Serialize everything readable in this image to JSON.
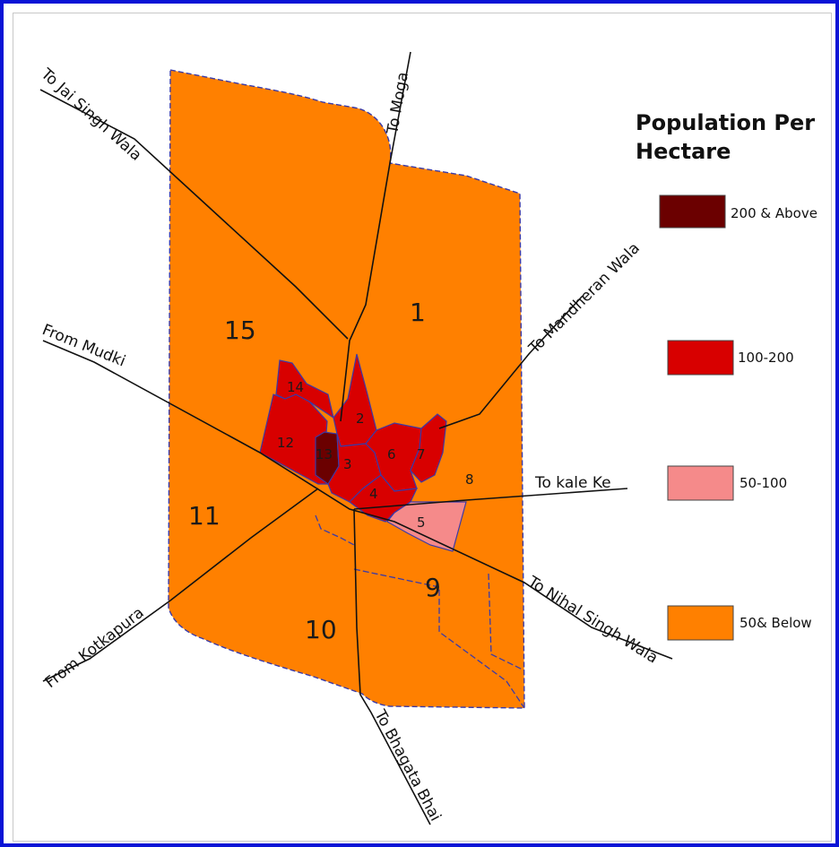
{
  "legend": {
    "title_line1": "Population Per",
    "title_line2": "Hectare",
    "classes": [
      {
        "label": "200 & Above",
        "color": "#6b0000"
      },
      {
        "label": "100-200",
        "color": "#d80000"
      },
      {
        "label": "50-100",
        "color": "#f58a8a"
      },
      {
        "label": "50& Below",
        "color": "#ff8000"
      }
    ]
  },
  "colors": {
    "frame": "#0a14d6",
    "boundary": "#3a3aa8",
    "road": "#111111"
  },
  "wards": [
    {
      "id": "1",
      "label": "1"
    },
    {
      "id": "2",
      "label": "2"
    },
    {
      "id": "3",
      "label": "3"
    },
    {
      "id": "4",
      "label": "4"
    },
    {
      "id": "5",
      "label": "5"
    },
    {
      "id": "6",
      "label": "6"
    },
    {
      "id": "7",
      "label": "7"
    },
    {
      "id": "8",
      "label": "8"
    },
    {
      "id": "9",
      "label": "9"
    },
    {
      "id": "10",
      "label": "10"
    },
    {
      "id": "11",
      "label": "11"
    },
    {
      "id": "12",
      "label": "12"
    },
    {
      "id": "13",
      "label": "13"
    },
    {
      "id": "14",
      "label": "14"
    },
    {
      "id": "15",
      "label": "15"
    }
  ],
  "roads": {
    "moga": "To Moga",
    "jai_singh_wala": "To Jai Singh Wala",
    "mandheran_wala": "To Mandheran Wala",
    "mudki": "From Mudki",
    "kale_ke": "To kale Ke",
    "nihal_singh_wala": "To Nihal Singh Wala",
    "kotkapura": "From Kotkapura",
    "bhagata_bhai": "To Bhagata Bhai"
  }
}
